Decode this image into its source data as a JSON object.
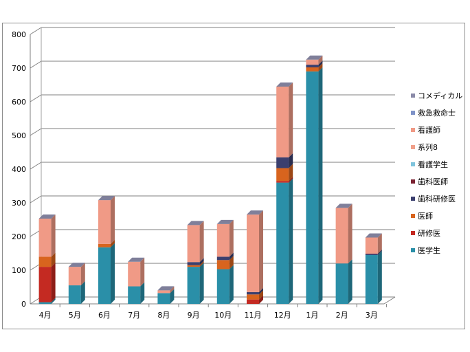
{
  "chart_data": {
    "type": "bar",
    "stacked": true,
    "three_d": true,
    "categories": [
      "4月",
      "5月",
      "6月",
      "7月",
      "8月",
      "9月",
      "10月",
      "11月",
      "12月",
      "1月",
      "2月",
      "3月"
    ],
    "ylim": [
      0,
      800
    ],
    "yticks": [
      "0",
      "100",
      "200",
      "300",
      "400",
      "500",
      "600",
      "700",
      "800"
    ],
    "grid": true,
    "legend_position": "right",
    "series": [
      {
        "name": "医学生",
        "color": "#2a8fa8",
        "values": [
          5,
          55,
          168,
          52,
          32,
          110,
          103,
          0,
          360,
          690,
          120,
          145
        ]
      },
      {
        "name": "研修医",
        "color": "#c42a22",
        "values": [
          105,
          0,
          0,
          0,
          0,
          0,
          0,
          13,
          5,
          0,
          0,
          0
        ]
      },
      {
        "name": "医師",
        "color": "#d8641e",
        "values": [
          30,
          0,
          10,
          0,
          0,
          5,
          27,
          15,
          38,
          12,
          0,
          0
        ]
      },
      {
        "name": "歯科研修医",
        "color": "#3b3f6e",
        "values": [
          0,
          0,
          0,
          0,
          0,
          9,
          10,
          7,
          32,
          8,
          0,
          4
        ]
      },
      {
        "name": "歯科医師",
        "color": "#7a2030",
        "values": [
          0,
          0,
          0,
          0,
          0,
          0,
          0,
          0,
          0,
          0,
          0,
          0
        ]
      },
      {
        "name": "看護学生",
        "color": "#7fc4dd",
        "values": [
          0,
          0,
          0,
          0,
          0,
          0,
          0,
          0,
          0,
          0,
          0,
          0
        ]
      },
      {
        "name": "系列8",
        "color": "#f0a08a",
        "values": [
          0,
          0,
          0,
          0,
          0,
          0,
          0,
          0,
          0,
          0,
          0,
          0
        ]
      },
      {
        "name": "看護師",
        "color": "#f09a86",
        "values": [
          113,
          55,
          130,
          73,
          8,
          110,
          97,
          230,
          210,
          15,
          165,
          48
        ]
      },
      {
        "name": "救急救命士",
        "color": "#7f93c8",
        "values": [
          0,
          0,
          0,
          0,
          0,
          0,
          0,
          0,
          0,
          0,
          0,
          0
        ]
      },
      {
        "name": "コメディカル",
        "color": "#8a8aa8",
        "values": [
          0,
          0,
          0,
          0,
          0,
          0,
          0,
          0,
          0,
          0,
          0,
          0
        ]
      }
    ]
  }
}
